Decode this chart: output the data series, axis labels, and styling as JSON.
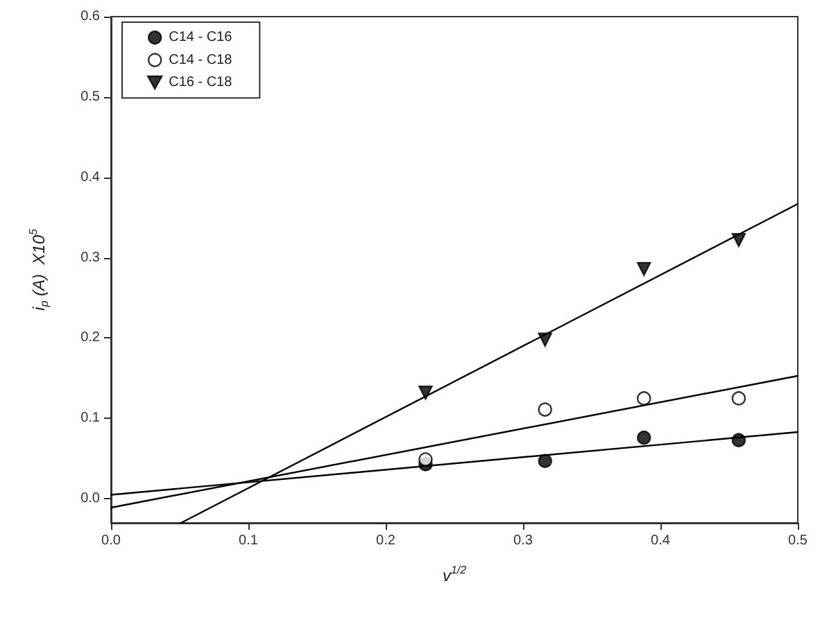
{
  "chart_data": {
    "type": "scatter",
    "xlabel": "v$^{1/2}$",
    "ylabel": "i$_{p}$ (A)  X10$^{5}$",
    "xlim": [
      0,
      0.5
    ],
    "ylim": [
      -0.03,
      0.6
    ],
    "xticks": [
      {
        "value": 0,
        "label": "0.0"
      },
      0.1,
      0.2,
      0.3,
      0.4,
      0.5
    ],
    "yticks": [
      {
        "value": 0,
        "label": "0.0"
      },
      0.1,
      0.2,
      0.3,
      0.4,
      0.5,
      0.6
    ],
    "grid": false,
    "legend": "top left",
    "series": [
      {
        "name": "C14 - C16",
        "color": "#000000",
        "marker": "circle",
        "x": [
          0.229,
          0.316,
          0.388,
          0.457
        ],
        "values": [
          0.043,
          0.047,
          0.076,
          0.073
        ]
      },
      {
        "name": "C14 - C18",
        "color": "#ffffff",
        "marker": "circle",
        "x": [
          0.229,
          0.316,
          0.388,
          0.457
        ],
        "values": [
          0.049,
          0.111,
          0.125,
          0.125
        ]
      },
      {
        "name": "C16 - C18",
        "color": "#000000",
        "marker": "triangle-down",
        "x": [
          0.229,
          0.316,
          0.388,
          0.457
        ],
        "values": [
          0.132,
          0.198,
          0.286,
          0.322
        ]
      },
      {
        "type": "line",
        "color": "#000000",
        "marker": "none",
        "x": [
          0,
          0.5
        ],
        "values": [
          0.005,
          0.083
        ]
      },
      {
        "type": "line",
        "color": "#000000",
        "marker": "none",
        "x": [
          0,
          0.5
        ],
        "values": [
          -0.011,
          0.153
        ]
      },
      {
        "type": "line",
        "color": "#000000",
        "marker": "none",
        "x": [
          0.051,
          0.5
        ],
        "values": [
          -0.03,
          0.367
        ]
      }
    ]
  }
}
